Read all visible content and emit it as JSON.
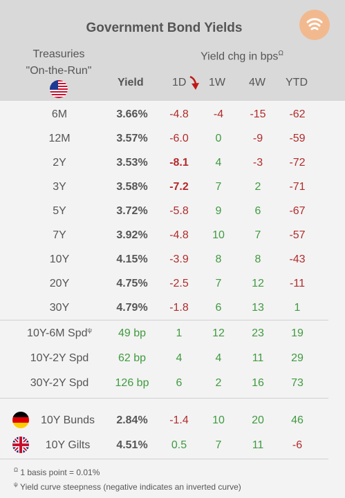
{
  "title": "Government Bond Yields",
  "treasuries_label": "Treasuries",
  "on_the_run_label": "\"On-the-Run\"",
  "yield_chg_label": "Yield chg in bps",
  "yield_chg_sup": "Ω",
  "columns": {
    "yield": "Yield",
    "d1": "1D",
    "w1": "1W",
    "w4": "4W",
    "ytd": "YTD"
  },
  "treasuries": [
    {
      "name": "6M",
      "yield": "3.66%",
      "d1": "-4.8",
      "w1": "-4",
      "w4": "-15",
      "ytd": "-62"
    },
    {
      "name": "12M",
      "yield": "3.57%",
      "d1": "-6.0",
      "w1": "0",
      "w4": "-9",
      "ytd": "-59"
    },
    {
      "name": "2Y",
      "yield": "3.53%",
      "d1": "-8.1",
      "w1": "4",
      "w4": "-3",
      "ytd": "-72"
    },
    {
      "name": "3Y",
      "yield": "3.58%",
      "d1": "-7.2",
      "w1": "7",
      "w4": "2",
      "ytd": "-71"
    },
    {
      "name": "5Y",
      "yield": "3.72%",
      "d1": "-5.8",
      "w1": "9",
      "w4": "6",
      "ytd": "-67"
    },
    {
      "name": "7Y",
      "yield": "3.92%",
      "d1": "-4.8",
      "w1": "10",
      "w4": "7",
      "ytd": "-57"
    },
    {
      "name": "10Y",
      "yield": "4.15%",
      "d1": "-3.9",
      "w1": "8",
      "w4": "8",
      "ytd": "-43"
    },
    {
      "name": "20Y",
      "yield": "4.75%",
      "d1": "-2.5",
      "w1": "7",
      "w4": "12",
      "ytd": "-11"
    },
    {
      "name": "30Y",
      "yield": "4.79%",
      "d1": "-1.8",
      "w1": "6",
      "w4": "13",
      "ytd": "1"
    }
  ],
  "spreads": [
    {
      "name": "10Y-6M Spd",
      "sup": "ψ",
      "yield": "49 bp",
      "d1": "1",
      "w1": "12",
      "w4": "23",
      "ytd": "19"
    },
    {
      "name": "10Y-2Y Spd",
      "sup": "",
      "yield": "62 bp",
      "d1": "4",
      "w1": "4",
      "w4": "11",
      "ytd": "29"
    },
    {
      "name": "30Y-2Y Spd",
      "sup": "",
      "yield": "126 bp",
      "d1": "6",
      "w1": "2",
      "w4": "16",
      "ytd": "73"
    }
  ],
  "foreign": [
    {
      "name": "10Y Bunds",
      "yield": "2.84%",
      "d1": "-1.4",
      "w1": "10",
      "w4": "20",
      "ytd": "46"
    },
    {
      "name": "10Y Gilts",
      "yield": "4.51%",
      "d1": "0.5",
      "w1": "7",
      "w4": "11",
      "ytd": "-6"
    }
  ],
  "footnotes": {
    "omega_sym": "Ω",
    "omega": " 1 basis point = 0.01%",
    "psi_sym": "ψ",
    "psi": " Yield curve steepness (negative indicates an inverted curve)"
  },
  "colors": {
    "negative": "#b22a2a",
    "positive": "#3f9a3f",
    "header_bg": "#d9d9d9",
    "body_bg": "#f3f3f3",
    "logo": "#f2b98f"
  },
  "icons": {
    "logo": "signal-logo-icon",
    "us_flag": "us-flag-icon",
    "de_flag": "germany-flag-icon",
    "uk_flag": "uk-flag-icon",
    "arrow": "down-arrow-icon"
  }
}
